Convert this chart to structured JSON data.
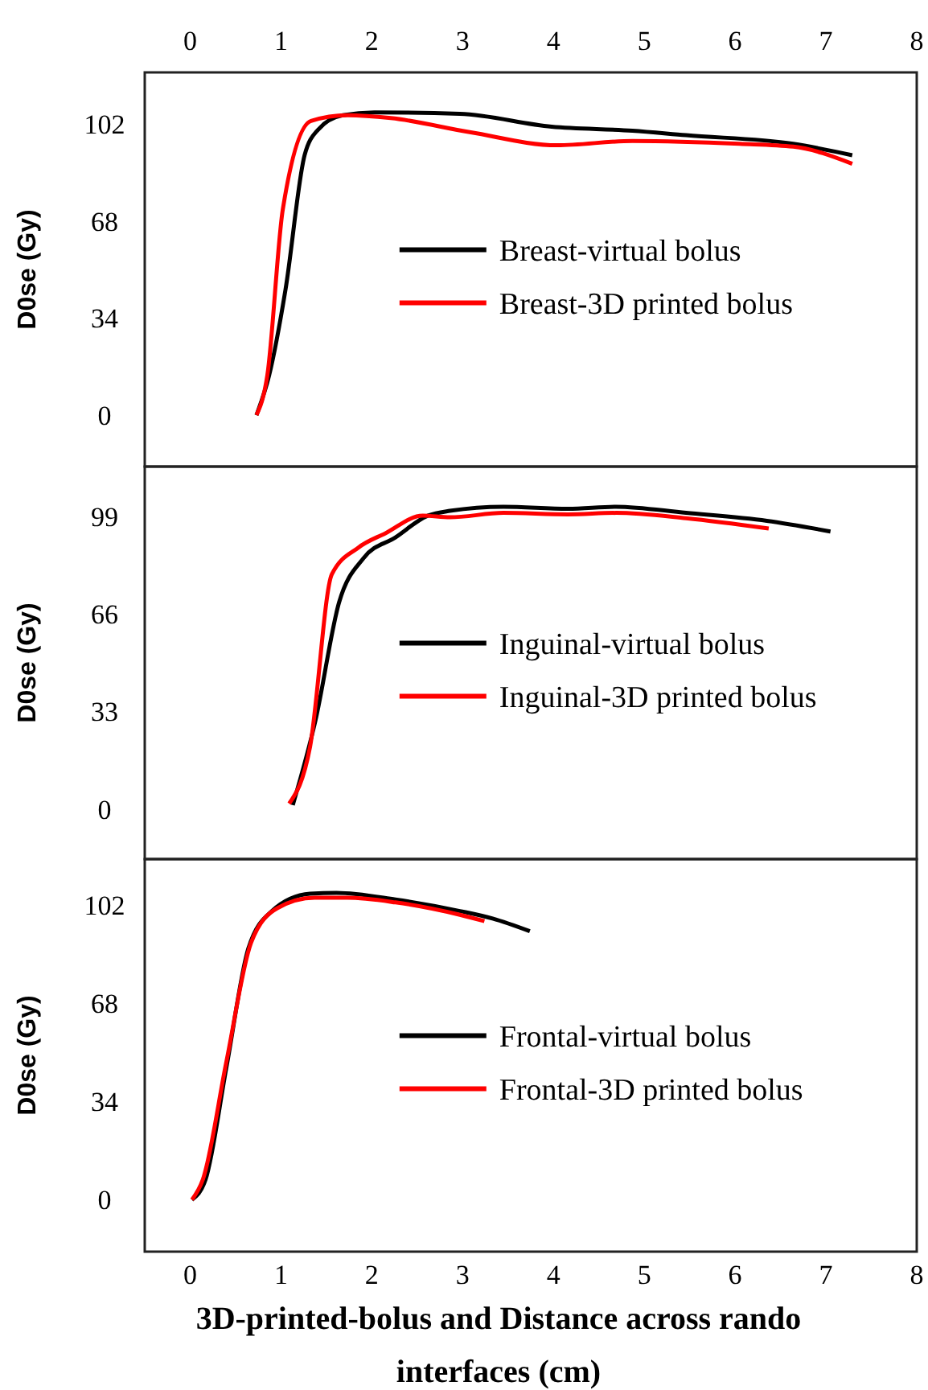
{
  "chart_data": [
    {
      "type": "line",
      "ylabel": "D0se (Gy)",
      "xlim": [
        -0.5,
        8
      ],
      "x2lim": [
        -0.5,
        8
      ],
      "x2ticks": [
        0,
        1,
        2,
        3,
        4,
        5,
        6,
        7,
        8
      ],
      "ylim": [
        -18,
        120
      ],
      "yticks": [
        0,
        34,
        68,
        102
      ],
      "tick_labels": "y",
      "legend": "center",
      "grid": false,
      "marker": "none",
      "line_style": "solid",
      "series": [
        {
          "name": "Breast-virtual bolus",
          "color": "#000000",
          "x": [
            0.73,
            0.87,
            1.05,
            1.26,
            1.41,
            1.68,
            2.03,
            2.97,
            3.98,
            4.87,
            5.46,
            6.64,
            7.29
          ],
          "values": [
            0,
            14,
            44,
            91,
            100,
            105,
            106,
            105.5,
            101,
            99.6,
            98,
            95,
            91
          ]
        },
        {
          "name": "Breast-3D printed bolus",
          "color": "#ff0000",
          "x": [
            0.73,
            0.85,
            1.02,
            1.33,
            1.73,
            2.21,
            3.09,
            4.04,
            4.87,
            6.05,
            6.64,
            7.29
          ],
          "values": [
            0,
            14,
            72,
            103,
            105,
            104,
            99,
            94.5,
            96,
            95,
            94,
            88
          ]
        }
      ]
    },
    {
      "type": "line",
      "ylabel": "D0se (Gy)",
      "xlim": [
        -0.5,
        8
      ],
      "ylim": [
        -17,
        116
      ],
      "yticks": [
        0,
        33,
        66,
        99
      ],
      "tick_labels": "y",
      "legend": "center",
      "grid": false,
      "marker": "none",
      "line_style": "solid",
      "series": [
        {
          "name": "Inguinal-virtual bolus",
          "color": "#000000",
          "x": [
            1.13,
            1.38,
            1.64,
            1.91,
            2.26,
            2.62,
            2.86,
            3.45,
            4.16,
            4.69,
            5.46,
            6.35,
            7.05
          ],
          "values": [
            1.3,
            30,
            70,
            85,
            92,
            99.4,
            101,
            102.4,
            101.7,
            102.4,
            100.3,
            97.6,
            94
          ]
        },
        {
          "name": "Inguinal-3D printed bolus",
          "color": "#ff0000",
          "x": [
            1.09,
            1.32,
            1.56,
            1.85,
            2.15,
            2.56,
            2.86,
            3.45,
            4.16,
            4.69,
            5.46,
            6.37
          ],
          "values": [
            1.8,
            21,
            79.5,
            88.5,
            93.4,
            99.4,
            98.8,
            100.3,
            99.8,
            100.3,
            98.5,
            95
          ]
        }
      ]
    },
    {
      "type": "line",
      "ylabel": "D0se (Gy)",
      "xlabel": "3D-printed-bolus and Distance across rando interfaces (cm)",
      "xlim": [
        -0.5,
        8
      ],
      "xticks": [
        0,
        1,
        2,
        3,
        4,
        5,
        6,
        7,
        8
      ],
      "ylim": [
        -18,
        118
      ],
      "yticks": [
        0,
        34,
        68,
        102
      ],
      "legend": "center",
      "grid": false,
      "marker": "none",
      "line_style": "solid",
      "series": [
        {
          "name": "Frontal-virtual bolus",
          "color": "#000000",
          "x": [
            0.02,
            0.17,
            0.4,
            0.64,
            0.9,
            1.32,
            1.61,
            2.26,
            2.97,
            3.33,
            3.74
          ],
          "values": [
            0,
            7,
            46,
            87,
            100,
            106,
            106.3,
            104,
            100,
            97.4,
            93
          ]
        },
        {
          "name": "Frontal-3D printed bolus",
          "color": "#ff0000",
          "x": [
            0.02,
            0.14,
            0.4,
            0.67,
            0.96,
            1.37,
            1.73,
            2.26,
            2.97,
            3.24
          ],
          "values": [
            0,
            7,
            48,
            89,
            101,
            104.6,
            104.6,
            103,
            98.7,
            96.5
          ]
        }
      ]
    }
  ]
}
